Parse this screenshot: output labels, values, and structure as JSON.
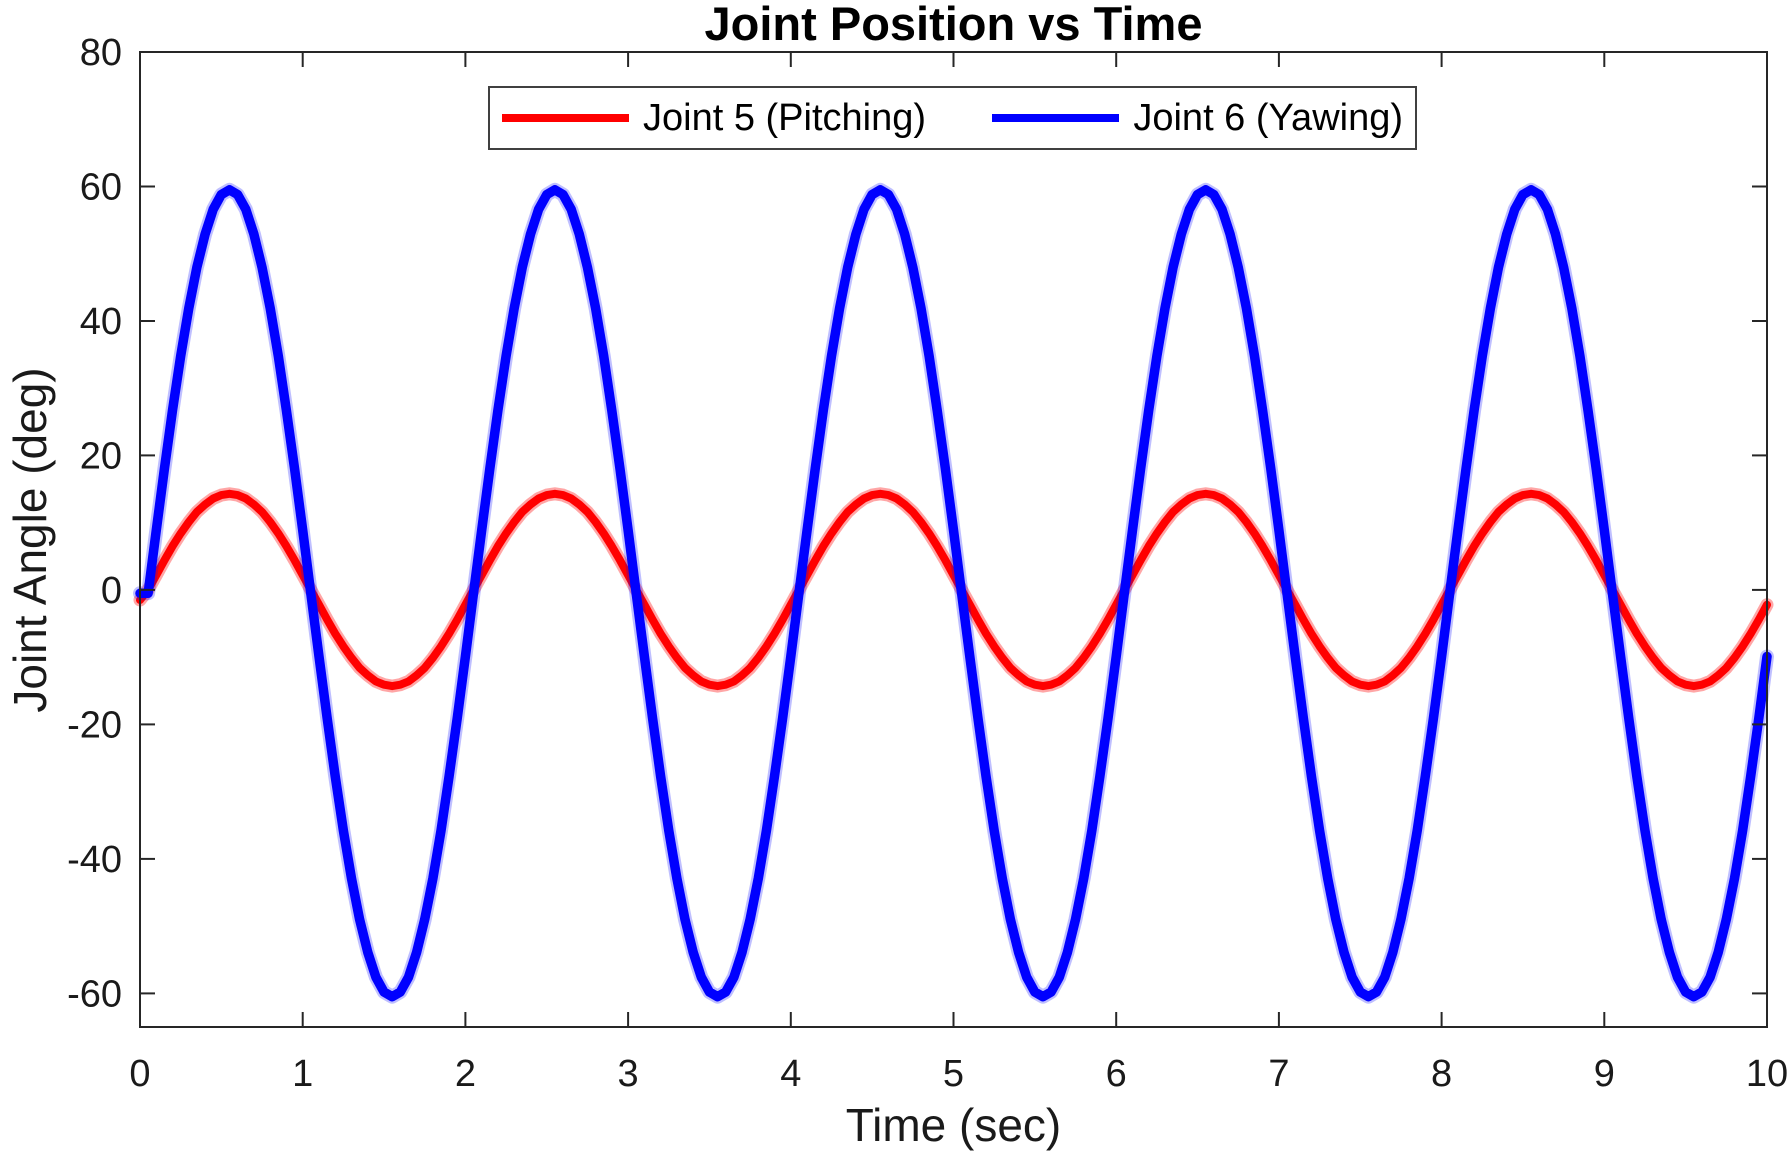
{
  "chart_data": {
    "type": "line",
    "title": "Joint Position vs Time",
    "xlabel": "Time (sec)",
    "ylabel": "Joint Angle (deg)",
    "xlim": [
      0,
      10
    ],
    "ylim": [
      -65,
      80
    ],
    "x_ticks": [
      0,
      1,
      2,
      3,
      4,
      5,
      6,
      7,
      8,
      9,
      10
    ],
    "y_ticks": [
      -60,
      -40,
      -20,
      0,
      20,
      40,
      60,
      80
    ],
    "grid": false,
    "legend_position": "top-center-inside",
    "t_start": 0,
    "t_step": 0.05,
    "series": [
      {
        "name": "Joint 5 (Pitching)",
        "color": "#ff0000",
        "line_width": 8,
        "halo_width": 13,
        "halo_opacity": 0.35,
        "values": [
          -1.5,
          0,
          2.2,
          4.4,
          6.5,
          8.4,
          10.1,
          11.6,
          12.7,
          13.6,
          14.1,
          14.3,
          14.1,
          13.6,
          12.7,
          11.6,
          10.1,
          8.4,
          6.5,
          4.4,
          2.2,
          0,
          -2.2,
          -4.4,
          -6.5,
          -8.4,
          -10.1,
          -11.6,
          -12.7,
          -13.6,
          -14.1,
          -14.3,
          -14.1,
          -13.6,
          -12.7,
          -11.6,
          -10.1,
          -8.4,
          -6.5,
          -4.4,
          -2.2,
          0,
          2.2,
          4.4,
          6.5,
          8.4,
          10.1,
          11.6,
          12.7,
          13.6,
          14.1,
          14.3,
          14.1,
          13.6,
          12.7,
          11.6,
          10.1,
          8.4,
          6.5,
          4.4,
          2.2,
          0,
          -2.2,
          -4.4,
          -6.5,
          -8.4,
          -10.1,
          -11.6,
          -12.7,
          -13.6,
          -14.1,
          -14.3,
          -14.1,
          -13.6,
          -12.7,
          -11.6,
          -10.1,
          -8.4,
          -6.5,
          -4.4,
          -2.2,
          0,
          2.2,
          4.4,
          6.5,
          8.4,
          10.1,
          11.6,
          12.7,
          13.6,
          14.1,
          14.3,
          14.1,
          13.6,
          12.7,
          11.6,
          10.1,
          8.4,
          6.5,
          4.4,
          2.2,
          0,
          -2.2,
          -4.4,
          -6.5,
          -8.4,
          -10.1,
          -11.6,
          -12.7,
          -13.6,
          -14.1,
          -14.3,
          -14.1,
          -13.6,
          -12.7,
          -11.6,
          -10.1,
          -8.4,
          -6.5,
          -4.4,
          -2.2,
          0,
          2.2,
          4.4,
          6.5,
          8.4,
          10.1,
          11.6,
          12.7,
          13.6,
          14.1,
          14.3,
          14.1,
          13.6,
          12.7,
          11.6,
          10.1,
          8.4,
          6.5,
          4.4,
          2.2,
          0,
          -2.2,
          -4.4,
          -6.5,
          -8.4,
          -10.1,
          -11.6,
          -12.7,
          -13.6,
          -14.1,
          -14.3,
          -14.1,
          -13.6,
          -12.7,
          -11.6,
          -10.1,
          -8.4,
          -6.5,
          -4.4,
          -2.2,
          0,
          2.2,
          4.4,
          6.5,
          8.4,
          10.1,
          11.6,
          12.7,
          13.6,
          14.1,
          14.3,
          14.1,
          13.6,
          12.7,
          11.6,
          10.1,
          8.4,
          6.5,
          4.4,
          2.2,
          0,
          -2.2,
          -4.4,
          -6.5,
          -8.4,
          -10.1,
          -11.6,
          -12.7,
          -13.6,
          -14.1,
          -14.3,
          -14.1,
          -13.6,
          -12.7,
          -11.6,
          -10.1,
          -8.4,
          -6.5,
          -4.4,
          -2.2
        ]
      },
      {
        "name": "Joint 6 (Yawing)",
        "color": "#0000ff",
        "line_width": 9.5,
        "halo_width": 14,
        "halo_opacity": 0.25,
        "values": [
          -0.5,
          -0.5,
          8.9,
          18,
          26.7,
          34.8,
          41.9,
          48,
          52.9,
          56.6,
          58.8,
          59.5,
          58.8,
          56.6,
          52.9,
          48,
          41.9,
          34.8,
          26.7,
          18,
          8.9,
          -0.5,
          -9.9,
          -19,
          -27.7,
          -35.8,
          -42.9,
          -49,
          -53.9,
          -57.6,
          -59.8,
          -60.5,
          -59.8,
          -57.6,
          -53.9,
          -49,
          -42.9,
          -35.8,
          -27.7,
          -19,
          -9.9,
          -0.5,
          8.9,
          18,
          26.7,
          34.8,
          41.9,
          48,
          52.9,
          56.6,
          58.8,
          59.5,
          58.8,
          56.6,
          52.9,
          48,
          41.9,
          34.8,
          26.7,
          18,
          8.9,
          -0.5,
          -9.9,
          -19,
          -27.7,
          -35.8,
          -42.9,
          -49,
          -53.9,
          -57.6,
          -59.8,
          -60.5,
          -59.8,
          -57.6,
          -53.9,
          -49,
          -42.9,
          -35.8,
          -27.7,
          -19,
          -9.9,
          -0.5,
          8.9,
          18,
          26.7,
          34.8,
          41.9,
          48,
          52.9,
          56.6,
          58.8,
          59.5,
          58.8,
          56.6,
          52.9,
          48,
          41.9,
          34.8,
          26.7,
          18,
          8.9,
          -0.5,
          -9.9,
          -19,
          -27.7,
          -35.8,
          -42.9,
          -49,
          -53.9,
          -57.6,
          -59.8,
          -60.5,
          -59.8,
          -57.6,
          -53.9,
          -49,
          -42.9,
          -35.8,
          -27.7,
          -19,
          -9.9,
          -0.5,
          8.9,
          18,
          26.7,
          34.8,
          41.9,
          48,
          52.9,
          56.6,
          58.8,
          59.5,
          58.8,
          56.6,
          52.9,
          48,
          41.9,
          34.8,
          26.7,
          18,
          8.9,
          -0.5,
          -9.9,
          -19,
          -27.7,
          -35.8,
          -42.9,
          -49,
          -53.9,
          -57.6,
          -59.8,
          -60.5,
          -59.8,
          -57.6,
          -53.9,
          -49,
          -42.9,
          -35.8,
          -27.7,
          -19,
          -9.9,
          -0.5,
          8.9,
          18,
          26.7,
          34.8,
          41.9,
          48,
          52.9,
          56.6,
          58.8,
          59.5,
          58.8,
          56.6,
          52.9,
          48,
          41.9,
          34.8,
          26.7,
          18,
          8.9,
          -0.5,
          -9.9,
          -19,
          -27.7,
          -35.8,
          -42.9,
          -49,
          -53.9,
          -57.6,
          -59.8,
          -60.5,
          -59.8,
          -57.6,
          -53.9,
          -49,
          -42.9,
          -35.8,
          -27.7,
          -19,
          -9.9
        ]
      }
    ]
  },
  "layout_colors": {
    "axis": "#262626",
    "tick_text": "#1a1a1a",
    "background": "#ffffff"
  }
}
